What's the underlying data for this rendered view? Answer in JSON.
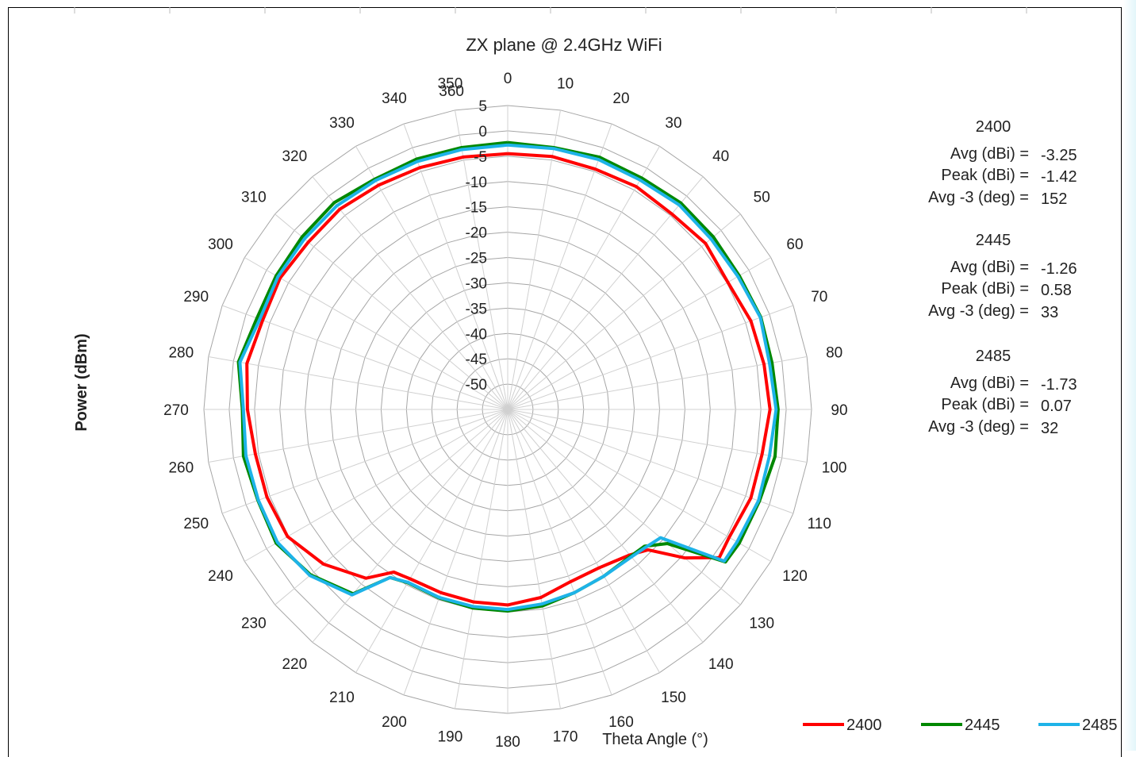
{
  "chart_data": {
    "type": "radar",
    "title": "ZX plane @ 2.4GHz WiFi",
    "xlabel": "Theta  Angle (°)",
    "ylabel": "Power (dBm)",
    "radial_range": [
      -55,
      5
    ],
    "radial_ticks": [
      "5",
      "0",
      "-5",
      "-10",
      "-15",
      "-20",
      "-25",
      "-30",
      "-35",
      "-40",
      "-45",
      "-50"
    ],
    "angle_labels": [
      "0",
      "10",
      "20",
      "30",
      "40",
      "50",
      "60",
      "70",
      "80",
      "90",
      "100",
      "110",
      "120",
      "130",
      "140",
      "150",
      "160",
      "170",
      "180",
      "190",
      "200",
      "210",
      "220",
      "230",
      "240",
      "250",
      "260",
      "270",
      "280",
      "290",
      "300",
      "310",
      "320",
      "330",
      "340",
      "350",
      "360"
    ],
    "angles": [
      0,
      10,
      20,
      30,
      40,
      50,
      60,
      70,
      80,
      90,
      100,
      110,
      120,
      125,
      130,
      135,
      140,
      150,
      160,
      170,
      180,
      190,
      200,
      210,
      215,
      220,
      230,
      240,
      250,
      260,
      270,
      280,
      290,
      300,
      310,
      320,
      330,
      340,
      350,
      360
    ],
    "series": [
      {
        "name": "2400",
        "color": "#ff0000",
        "values": [
          -4.5,
          -4.3,
          -4.5,
          -4.2,
          -4.6,
          -4.0,
          -4.8,
          -3.9,
          -3.6,
          -3.2,
          -4.0,
          -3.9,
          -4.5,
          -4.0,
          -9.4,
          -15.8,
          -17.5,
          -18.9,
          -18.8,
          -17.3,
          -16.4,
          -16.4,
          -16.5,
          -16.4,
          -15.8,
          -11.5,
          -7.5,
          -4.8,
          -4.4,
          -4.4,
          -3.6,
          -2.7,
          -3.5,
          -3.1,
          -3.6,
          -3.4,
          -3.9,
          -4.2,
          -4.4,
          -4.5
        ]
      },
      {
        "name": "2445",
        "color": "#008800",
        "values": [
          -2.3,
          -2.5,
          -2.0,
          -2.2,
          -1.8,
          -2.0,
          -2.2,
          -1.8,
          -2.0,
          -1.6,
          -1.4,
          -2.1,
          -2.2,
          -2.5,
          -13.8,
          -16.8,
          -17.2,
          -17.0,
          -16.5,
          -15.6,
          -15.2,
          -15.2,
          -15.4,
          -15.5,
          -14.5,
          -7.5,
          -4.2,
          -2.2,
          -2.5,
          -2.0,
          -2.6,
          -1.0,
          -2.3,
          -2.2,
          -2.0,
          -1.7,
          -2.5,
          -2.4,
          -2.5,
          -2.3
        ]
      },
      {
        "name": "2485",
        "color": "#1eb3e8",
        "values": [
          -2.8,
          -2.7,
          -2.5,
          -2.7,
          -2.3,
          -2.6,
          -2.5,
          -1.9,
          -2.5,
          -2.0,
          -2.5,
          -2.3,
          -2.7,
          -2.8,
          -15.6,
          -16.5,
          -17.0,
          -17.0,
          -16.5,
          -16.0,
          -15.5,
          -15.5,
          -15.5,
          -15.6,
          -14.5,
          -7.2,
          -4.0,
          -2.5,
          -2.6,
          -2.5,
          -2.8,
          -1.3,
          -2.9,
          -2.6,
          -2.6,
          -2.5,
          -2.8,
          -2.9,
          -2.9,
          -2.8
        ]
      }
    ],
    "legend_position": "bottom-right",
    "grid": true
  },
  "stats": [
    {
      "freq": "2400",
      "avg_label": "Avg (dBi) =",
      "avg_value": "-3.25",
      "peak_label": "Peak (dBi) =",
      "peak_value": "-1.42",
      "avg3_label": "Avg -3 (deg) =",
      "avg3_value": "152"
    },
    {
      "freq": "2445",
      "avg_label": "Avg (dBi) =",
      "avg_value": "-1.26",
      "peak_label": "Peak (dBi) =",
      "peak_value": "0.58",
      "avg3_label": "Avg -3 (deg) =",
      "avg3_value": "33"
    },
    {
      "freq": "2485",
      "avg_label": "Avg (dBi) =",
      "avg_value": "-1.73",
      "peak_label": "Peak (dBi) =",
      "peak_value": "0.07",
      "avg3_label": "Avg -3 (deg) =",
      "avg3_value": "32"
    }
  ]
}
